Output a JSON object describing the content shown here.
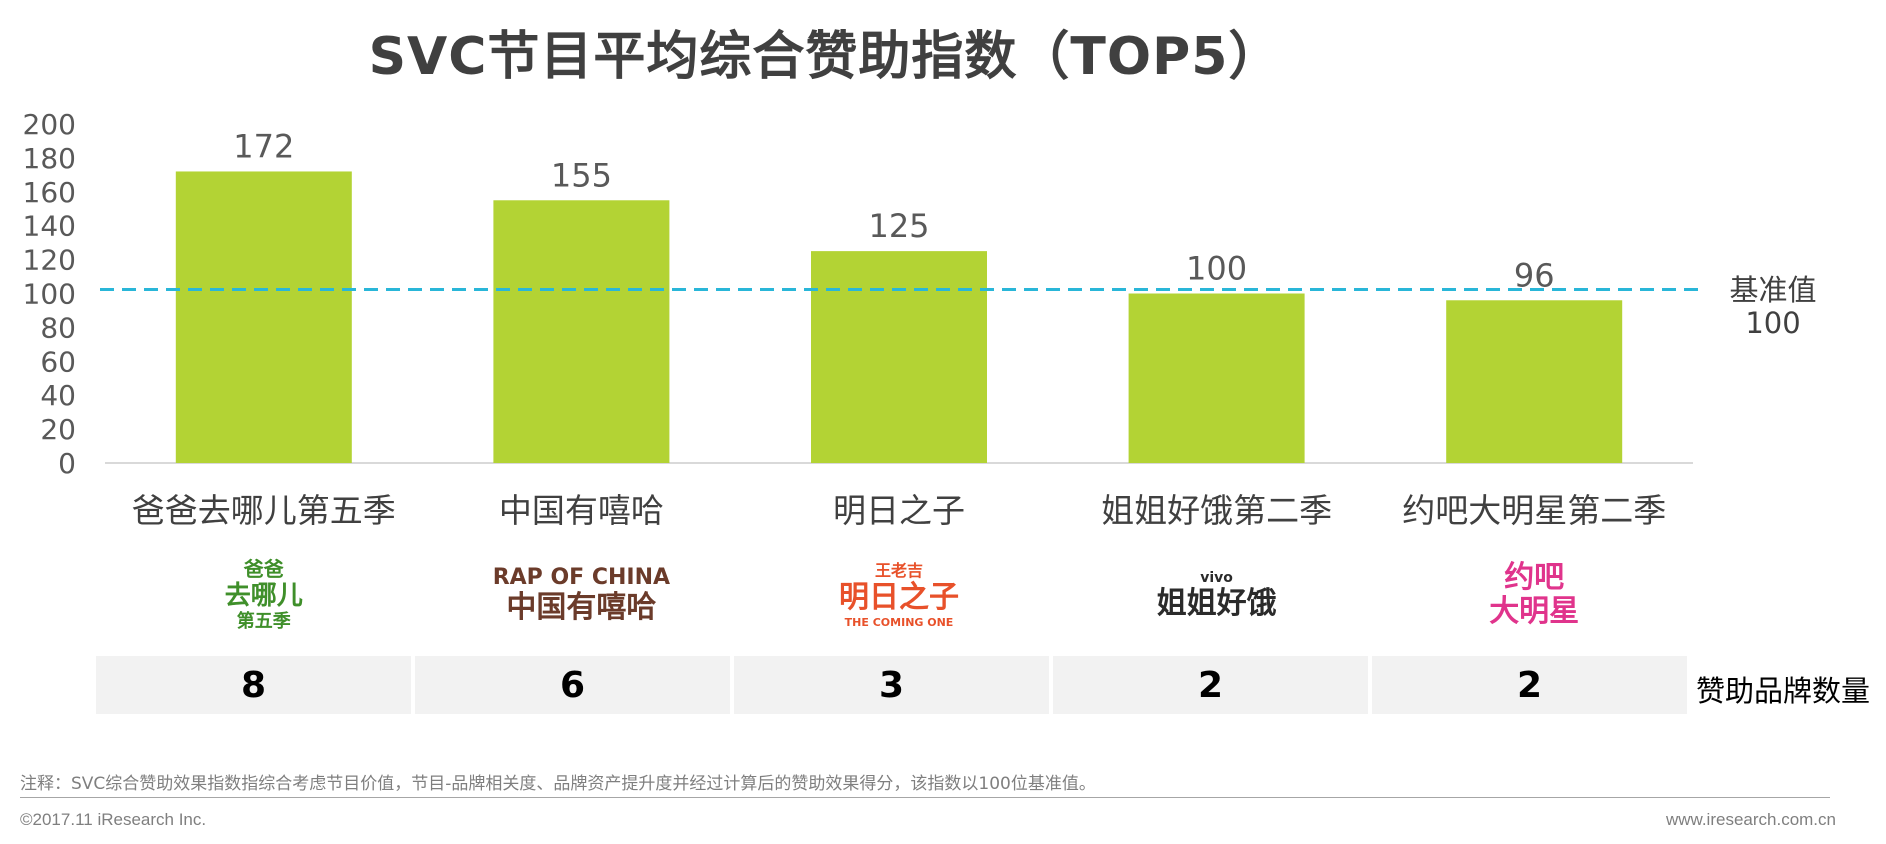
{
  "title": "SVC节目平均综合赞助指数（TOP5）",
  "chart_data": {
    "type": "bar",
    "categories": [
      "爸爸去哪儿第五季",
      "中国有嘻哈",
      "明日之子",
      "姐姐好饿第二季",
      "约吧大明星第二季"
    ],
    "values": [
      172,
      155,
      125,
      100,
      96
    ],
    "value_labels": [
      "172",
      "155",
      "125",
      "100",
      "96"
    ],
    "ylim": [
      0,
      200
    ],
    "yticks": [
      "0",
      "20",
      "40",
      "60",
      "80",
      "100",
      "120",
      "140",
      "160",
      "180",
      "200"
    ],
    "ytick_values": [
      0,
      20,
      40,
      60,
      80,
      100,
      120,
      140,
      160,
      180,
      200
    ],
    "reference_line": {
      "value": 100,
      "label_line1": "基准值",
      "label_line2": "100",
      "color": "#29b6d8"
    },
    "bar_color": "#b3d334",
    "grid": false,
    "legend": "none"
  },
  "logos": [
    {
      "name": "baba-logo",
      "lines": [
        "爸爸",
        "去哪儿",
        "第五季"
      ],
      "color": "#3f8f2a"
    },
    {
      "name": "rap-of-china-logo",
      "lines": [
        "RAP OF CHINA",
        "中国有嘻哈"
      ],
      "color": "#6b3b2a"
    },
    {
      "name": "the-coming-one-logo",
      "lines": [
        "王老吉",
        "明日之子",
        "THE COMING ONE"
      ],
      "color": "#e8512a"
    },
    {
      "name": "jiejie-logo",
      "lines": [
        "vivo",
        "姐姐好饿"
      ],
      "color": "#2b2b2b"
    },
    {
      "name": "yueba-logo",
      "lines": [
        "约吧",
        "大明星"
      ],
      "color": "#e0348c"
    }
  ],
  "sponsor_counts": {
    "label": "赞助品牌数量",
    "values": [
      "8",
      "6",
      "3",
      "2",
      "2"
    ]
  },
  "footer": {
    "note": "注释：SVC综合赞助效果指数指综合考虑节目价值，节目-品牌相关度、品牌资产提升度并经过计算后的赞助效果得分，该指数以100位基准值。",
    "copyright": "©2017.11 iResearch Inc.",
    "website": "www.iresearch.com.cn"
  }
}
